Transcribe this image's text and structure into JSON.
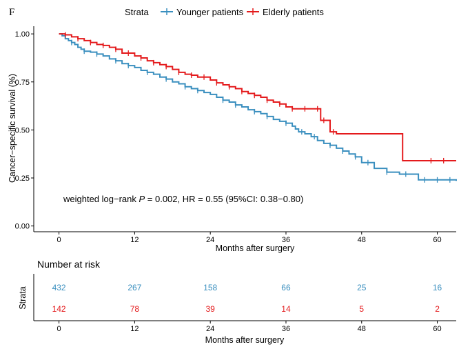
{
  "panel_label": "F",
  "chart_data": {
    "type": "line",
    "subtype": "kaplan-meier",
    "legend": {
      "title": "Strata",
      "placement": "top",
      "entries": [
        "Younger patients",
        "Elderly patients"
      ]
    },
    "xlabel": "Months after surgery",
    "ylabel": "Cancer−specific survival (%)",
    "xlim": [
      -4,
      63
    ],
    "ylim": [
      -0.03,
      1.04
    ],
    "x_ticks": [
      0,
      12,
      24,
      36,
      48,
      60
    ],
    "x_tick_labels": [
      "0",
      "12",
      "24",
      "36",
      "48",
      "60"
    ],
    "y_ticks": [
      0,
      0.25,
      0.5,
      0.75,
      1.0
    ],
    "y_tick_labels": [
      "0.00",
      "0.25",
      "0.50",
      "0.75",
      "1.00"
    ],
    "grid": false,
    "annotation": {
      "prefix": "weighted log−rank ",
      "p_symbol": "P",
      "suffix": " = 0.002, HR = 0.55 (95%CI: 0.38−0.80)"
    },
    "series": [
      {
        "name": "Younger patients",
        "color": "#3a8fbf",
        "steps": [
          [
            0,
            1.0
          ],
          [
            0.5,
            0.99
          ],
          [
            1,
            0.975
          ],
          [
            1.5,
            0.965
          ],
          [
            2,
            0.955
          ],
          [
            2.5,
            0.945
          ],
          [
            3,
            0.93
          ],
          [
            3.5,
            0.92
          ],
          [
            4,
            0.91
          ],
          [
            5,
            0.905
          ],
          [
            6,
            0.895
          ],
          [
            7,
            0.885
          ],
          [
            8,
            0.87
          ],
          [
            9,
            0.86
          ],
          [
            10,
            0.845
          ],
          [
            11,
            0.835
          ],
          [
            12,
            0.825
          ],
          [
            13,
            0.81
          ],
          [
            14,
            0.8
          ],
          [
            15,
            0.79
          ],
          [
            16,
            0.775
          ],
          [
            17,
            0.765
          ],
          [
            18,
            0.75
          ],
          [
            19,
            0.74
          ],
          [
            20,
            0.725
          ],
          [
            21,
            0.715
          ],
          [
            22,
            0.705
          ],
          [
            23,
            0.695
          ],
          [
            24,
            0.685
          ],
          [
            25,
            0.67
          ],
          [
            26,
            0.655
          ],
          [
            27,
            0.645
          ],
          [
            28,
            0.63
          ],
          [
            29,
            0.62
          ],
          [
            30,
            0.605
          ],
          [
            31,
            0.595
          ],
          [
            32,
            0.585
          ],
          [
            33,
            0.57
          ],
          [
            34,
            0.555
          ],
          [
            35,
            0.545
          ],
          [
            36,
            0.535
          ],
          [
            37,
            0.52
          ],
          [
            37.5,
            0.505
          ],
          [
            38,
            0.49
          ],
          [
            39,
            0.48
          ],
          [
            40,
            0.465
          ],
          [
            41,
            0.445
          ],
          [
            42,
            0.43
          ],
          [
            43,
            0.42
          ],
          [
            44,
            0.405
          ],
          [
            45,
            0.39
          ],
          [
            46,
            0.375
          ],
          [
            47,
            0.36
          ],
          [
            48,
            0.33
          ],
          [
            50,
            0.3
          ],
          [
            52,
            0.28
          ],
          [
            54,
            0.27
          ],
          [
            56,
            0.27
          ],
          [
            57,
            0.24
          ],
          [
            63,
            0.235
          ]
        ],
        "censor_x": [
          2,
          4,
          6,
          9,
          11,
          14,
          17,
          20,
          22,
          26,
          28,
          31,
          33,
          36,
          38.5,
          40.5,
          43,
          45,
          47,
          49,
          52,
          55,
          58,
          60,
          62
        ],
        "risk_values": [
          432,
          267,
          158,
          66,
          25,
          16
        ]
      },
      {
        "name": "Elderly patients",
        "color": "#e41a1c",
        "steps": [
          [
            0,
            1.0
          ],
          [
            1,
            0.995
          ],
          [
            2,
            0.985
          ],
          [
            3,
            0.975
          ],
          [
            4,
            0.965
          ],
          [
            5,
            0.955
          ],
          [
            6,
            0.945
          ],
          [
            7,
            0.94
          ],
          [
            8,
            0.93
          ],
          [
            9,
            0.92
          ],
          [
            10,
            0.9
          ],
          [
            12,
            0.885
          ],
          [
            13,
            0.875
          ],
          [
            14,
            0.86
          ],
          [
            15,
            0.85
          ],
          [
            16,
            0.84
          ],
          [
            17,
            0.83
          ],
          [
            18,
            0.815
          ],
          [
            19,
            0.8
          ],
          [
            20,
            0.79
          ],
          [
            21,
            0.785
          ],
          [
            22,
            0.775
          ],
          [
            24,
            0.76
          ],
          [
            25,
            0.745
          ],
          [
            26,
            0.735
          ],
          [
            27,
            0.725
          ],
          [
            28,
            0.715
          ],
          [
            29,
            0.7
          ],
          [
            30,
            0.69
          ],
          [
            31,
            0.68
          ],
          [
            32,
            0.67
          ],
          [
            33,
            0.655
          ],
          [
            34,
            0.645
          ],
          [
            35,
            0.635
          ],
          [
            36,
            0.62
          ],
          [
            37,
            0.61
          ],
          [
            41.5,
            0.55
          ],
          [
            43,
            0.49
          ],
          [
            44,
            0.48
          ],
          [
            54.5,
            0.34
          ],
          [
            63,
            0.34
          ]
        ],
        "censor_x": [
          1,
          3,
          5,
          7,
          9,
          11,
          13,
          15,
          17,
          19,
          21,
          23,
          25,
          27,
          29,
          31,
          33,
          35,
          37,
          39,
          41,
          42,
          43.5,
          59,
          61
        ],
        "risk_values": [
          142,
          78,
          39,
          14,
          5,
          2
        ]
      }
    ],
    "risk_table": {
      "title": "Number at risk",
      "ylabel": "Strata",
      "xlabel": "Months after surgery",
      "x": [
        0,
        12,
        24,
        36,
        48,
        60
      ]
    }
  }
}
